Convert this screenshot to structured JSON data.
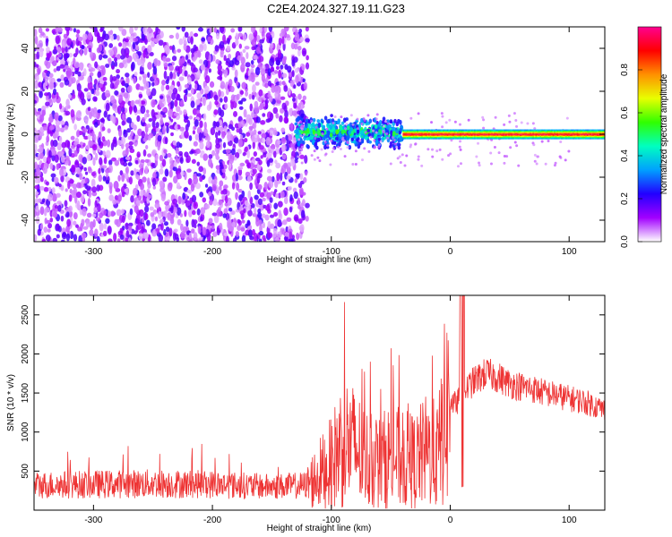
{
  "title": "C2E4.2024.327.19.11.G23",
  "chart_data": [
    {
      "type": "heatmap",
      "title": "",
      "xlabel": "Height of straight line (km)",
      "ylabel": "Frequency (Hz)",
      "xlim": [
        -350,
        130
      ],
      "ylim": [
        -50,
        50
      ],
      "x_ticks": [
        -300,
        -200,
        -100,
        0,
        100
      ],
      "y_ticks": [
        -40,
        -20,
        0,
        20,
        40
      ],
      "colorbar": {
        "label": "Normalized spectral amplitude",
        "range": [
          0,
          1
        ],
        "ticks": [
          0.0,
          0.2,
          0.4,
          0.6,
          0.8
        ],
        "colormap": [
          "#ffffff",
          "#a200ff",
          "#2200ff",
          "#00a0ff",
          "#00ffc0",
          "#30ff00",
          "#e8ff00",
          "#ff9000",
          "#ff0000",
          "#ff0090"
        ]
      },
      "regions": [
        {
          "x_range": [
            -350,
            -130
          ],
          "freq_range": [
            -50,
            50
          ],
          "amplitude": "low (0.05-0.15)",
          "pattern": "noise"
        },
        {
          "x_range": [
            -130,
            -40
          ],
          "freq_center": 0,
          "freq_spread": 8,
          "amplitude": "0.2-0.6"
        },
        {
          "x_range": [
            -40,
            130
          ],
          "freq_center": 0,
          "freq_spread": 2,
          "amplitude": "0.7-1.0"
        }
      ]
    },
    {
      "type": "line",
      "title": "",
      "xlabel": "Height of straight line (km)",
      "ylabel": "SNR (10 * v/v)",
      "xlim": [
        -350,
        130
      ],
      "ylim": [
        0,
        2750
      ],
      "x_ticks": [
        -300,
        -200,
        -100,
        0,
        100
      ],
      "y_ticks": [
        500,
        1000,
        1500,
        2000,
        2500
      ],
      "series": [
        {
          "color": "#ee3333",
          "envelope": {
            "x": [
              -350,
              -300,
              -250,
              -200,
              -150,
              -120,
              -100,
              -90,
              -80,
              -70,
              -60,
              -50,
              -40,
              -30,
              -20,
              -10,
              -5,
              0,
              5,
              10,
              20,
              30,
              40,
              50,
              60,
              70,
              80,
              90,
              100,
              110,
              120,
              130
            ],
            "y": [
              320,
              330,
              340,
              330,
              300,
              320,
              600,
              900,
              800,
              650,
              600,
              700,
              650,
              620,
              750,
              700,
              1200,
              1400,
              1350,
              1500,
              1650,
              1750,
              1700,
              1620,
              1580,
              1550,
              1500,
              1470,
              1430,
              1400,
              1350,
              1280
            ]
          }
        }
      ]
    }
  ]
}
